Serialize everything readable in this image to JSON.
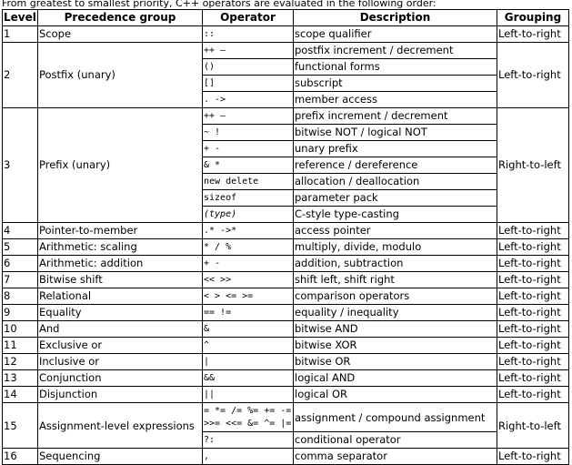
{
  "intro": "From greatest to smallest priority, C++ operators are evaluated in the following order:",
  "headers": {
    "level": "Level",
    "group": "Precedence group",
    "operator": "Operator",
    "description": "Description",
    "grouping": "Grouping"
  },
  "rows": [
    {
      "level": "1",
      "group": "Scope",
      "ops": [
        [
          "::",
          "scope qualifier"
        ]
      ],
      "grouping": "Left-to-right"
    },
    {
      "level": "2",
      "group": "Postfix (unary)",
      "ops": [
        [
          "++ —",
          "postfix increment / decrement"
        ],
        [
          "()",
          "functional forms"
        ],
        [
          "[]",
          "subscript"
        ],
        [
          ". ->",
          "member access"
        ]
      ],
      "grouping": "Left-to-right"
    },
    {
      "level": "3",
      "group": "Prefix (unary)",
      "ops": [
        [
          "++ —",
          "prefix increment / decrement"
        ],
        [
          "~ !",
          "bitwise NOT / logical NOT"
        ],
        [
          "+ -",
          "unary prefix"
        ],
        [
          "& *",
          "reference / dereference"
        ],
        [
          "new delete",
          "allocation / deallocation"
        ],
        [
          "sizeof",
          "parameter pack"
        ],
        [
          "(type)",
          "C-style type-casting"
        ]
      ],
      "grouping": "Right-to-left"
    },
    {
      "level": "4",
      "group": "Pointer-to-member",
      "ops": [
        [
          ".* ->*",
          "access pointer"
        ]
      ],
      "grouping": "Left-to-right"
    },
    {
      "level": "5",
      "group": "Arithmetic: scaling",
      "ops": [
        [
          "* / %",
          "multiply, divide, modulo"
        ]
      ],
      "grouping": "Left-to-right"
    },
    {
      "level": "6",
      "group": "Arithmetic: addition",
      "ops": [
        [
          "+ -",
          "addition, subtraction"
        ]
      ],
      "grouping": "Left-to-right"
    },
    {
      "level": "7",
      "group": "Bitwise shift",
      "ops": [
        [
          "<< >>",
          "shift left, shift right"
        ]
      ],
      "grouping": "Left-to-right"
    },
    {
      "level": "8",
      "group": "Relational",
      "ops": [
        [
          "< > <= >=",
          "comparison operators"
        ]
      ],
      "grouping": "Left-to-right"
    },
    {
      "level": "9",
      "group": "Equality",
      "ops": [
        [
          "== !=",
          "equality / inequality"
        ]
      ],
      "grouping": "Left-to-right"
    },
    {
      "level": "10",
      "group": "And",
      "ops": [
        [
          "&",
          "bitwise AND"
        ]
      ],
      "grouping": "Left-to-right"
    },
    {
      "level": "11",
      "group": "Exclusive or",
      "ops": [
        [
          "^",
          "bitwise XOR"
        ]
      ],
      "grouping": "Left-to-right"
    },
    {
      "level": "12",
      "group": "Inclusive or",
      "ops": [
        [
          "|",
          "bitwise OR"
        ]
      ],
      "grouping": "Left-to-right"
    },
    {
      "level": "13",
      "group": "Conjunction",
      "ops": [
        [
          "&&",
          "logical AND"
        ]
      ],
      "grouping": "Left-to-right"
    },
    {
      "level": "14",
      "group": "Disjunction",
      "ops": [
        [
          "||",
          "logical OR"
        ]
      ],
      "grouping": "Left-to-right"
    },
    {
      "level": "15",
      "group": "Assignment-level expressions",
      "ops": [
        [
          "= *= /= %= += -= >>= <<= &= ^= |=",
          "assignment / compound assignment"
        ],
        [
          "?:",
          "conditional operator"
        ]
      ],
      "grouping": "Right-to-left"
    },
    {
      "level": "16",
      "group": "Sequencing",
      "ops": [
        [
          ",",
          "comma separator"
        ]
      ],
      "grouping": "Left-to-right"
    }
  ]
}
